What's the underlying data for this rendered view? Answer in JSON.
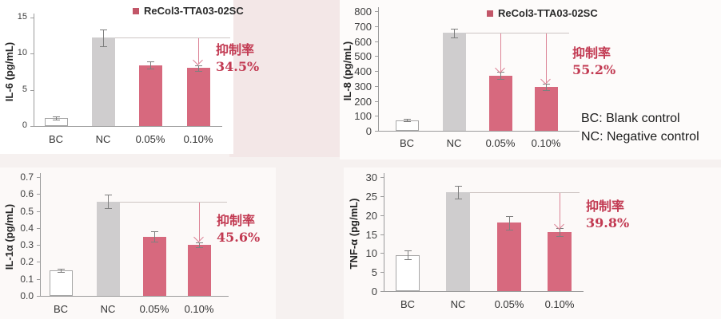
{
  "figure": {
    "notes": [
      "BC: Blank control",
      "NC: Negative control"
    ]
  },
  "colors": {
    "treatment_bar": "#d7697e",
    "negative_bar": "#cfcdce",
    "blank_bar_fill": "#ffffff",
    "blank_bar_border": "#a6a6a6",
    "legend_marker": "#c25668",
    "annotation_red": "#c23a52",
    "arrow_pink": "#dc8396",
    "reference_line": "#cdc5c3",
    "axis": "#9b9b9b",
    "error_bar": "#7f7f7f",
    "tick_text": "#3f3f3f",
    "label_text": "#262626"
  },
  "chart_data": [
    {
      "type": "bar",
      "title": "",
      "ylabel": "IL-6 (pg/mL)",
      "xlabel": "",
      "categories": [
        "BC",
        "NC",
        "0.05%",
        "0.10%"
      ],
      "values": [
        1.1,
        12.2,
        8.4,
        8.0
      ],
      "errors": [
        0.2,
        1.2,
        0.5,
        0.4
      ],
      "ylim": [
        0,
        15
      ],
      "ytick_step": 5,
      "grid": false,
      "legend": "ReCol3-TTA03-02SC",
      "legend_position": "top-right",
      "bar_roles": [
        "blank",
        "negative",
        "treatment",
        "treatment"
      ],
      "annotation": {
        "label": "抑制率",
        "value": "34.5%"
      },
      "arrow_targets": [
        3
      ]
    },
    {
      "type": "bar",
      "title": "",
      "ylabel": "IL-8 (pg/mL)",
      "xlabel": "",
      "categories": [
        "BC",
        "NC",
        "0.05%",
        "0.10%"
      ],
      "values": [
        70,
        655,
        370,
        295
      ],
      "errors": [
        8,
        30,
        25,
        22
      ],
      "ylim": [
        0,
        800
      ],
      "ytick_step": 100,
      "grid": false,
      "legend": "ReCol3-TTA03-02SC",
      "legend_position": "top-right",
      "bar_roles": [
        "blank",
        "negative",
        "treatment",
        "treatment"
      ],
      "annotation": {
        "label": "抑制率",
        "value": "55.2%"
      },
      "arrow_targets": [
        2,
        3
      ]
    },
    {
      "type": "bar",
      "title": "",
      "ylabel": "IL-1α (pg/mL)",
      "xlabel": "",
      "categories": [
        "BC",
        "NC",
        "0.05%",
        "0.10%"
      ],
      "values": [
        0.15,
        0.555,
        0.35,
        0.3
      ],
      "errors": [
        0.01,
        0.04,
        0.03,
        0.015
      ],
      "ylim": [
        0,
        0.7
      ],
      "ytick_step": 0.1,
      "grid": false,
      "legend": null,
      "bar_roles": [
        "blank",
        "negative",
        "treatment",
        "treatment"
      ],
      "annotation": {
        "label": "抑制率",
        "value": "45.6%"
      },
      "arrow_targets": [
        3
      ]
    },
    {
      "type": "bar",
      "title": "",
      "ylabel": "TNF-α (pg/mL)",
      "xlabel": "",
      "categories": [
        "BC",
        "NC",
        "0.05%",
        "0.10%"
      ],
      "values": [
        9.5,
        26,
        18,
        15.5
      ],
      "errors": [
        1.2,
        1.7,
        1.8,
        1.0
      ],
      "ylim": [
        0,
        30
      ],
      "ytick_step": 5,
      "grid": false,
      "legend": null,
      "bar_roles": [
        "blank",
        "negative",
        "treatment",
        "treatment"
      ],
      "annotation": {
        "label": "抑制率",
        "value": "39.8%"
      },
      "arrow_targets": [
        3
      ]
    }
  ]
}
